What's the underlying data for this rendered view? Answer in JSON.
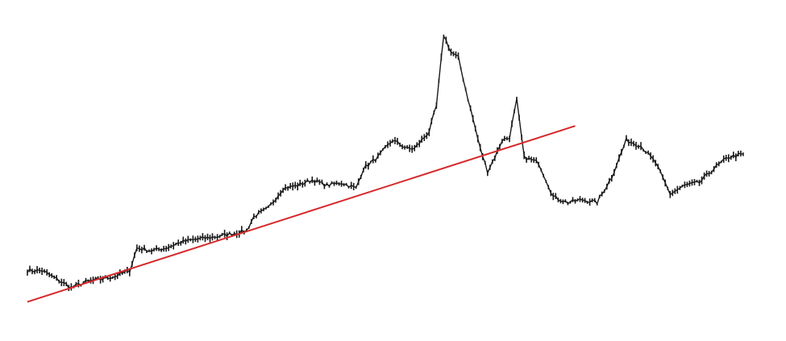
{
  "chart_data": {
    "type": "line",
    "title": "",
    "xlabel": "",
    "ylabel": "",
    "axes_visible": false,
    "grid": false,
    "legend": "none",
    "ylim": [
      0,
      100
    ],
    "xlim": [
      0,
      100
    ],
    "series": [
      {
        "points": [
          [
            0,
            16
          ],
          [
            2,
            16
          ],
          [
            4,
            13
          ],
          [
            6,
            10
          ],
          [
            8,
            12
          ],
          [
            10,
            13
          ],
          [
            12,
            14
          ],
          [
            14,
            16
          ],
          [
            15,
            24
          ],
          [
            17,
            23
          ],
          [
            19,
            24
          ],
          [
            21,
            26
          ],
          [
            23,
            27
          ],
          [
            26,
            28
          ],
          [
            28,
            29
          ],
          [
            30,
            30
          ],
          [
            31,
            35
          ],
          [
            33,
            38
          ],
          [
            35,
            45
          ],
          [
            37,
            46
          ],
          [
            39,
            48
          ],
          [
            41,
            46
          ],
          [
            43,
            47
          ],
          [
            45,
            45
          ],
          [
            46,
            52
          ],
          [
            48,
            56
          ],
          [
            50,
            62
          ],
          [
            52,
            59
          ],
          [
            53,
            59
          ],
          [
            55,
            65
          ],
          [
            56,
            74
          ],
          [
            57,
            99
          ],
          [
            58,
            93
          ],
          [
            59,
            91
          ],
          [
            60,
            80
          ],
          [
            62,
            59
          ],
          [
            63,
            51
          ],
          [
            64,
            56
          ],
          [
            65,
            62
          ],
          [
            66,
            63
          ],
          [
            67,
            76
          ],
          [
            68,
            56
          ],
          [
            70,
            54
          ],
          [
            72,
            42
          ],
          [
            74,
            40
          ],
          [
            76,
            41
          ],
          [
            78,
            40
          ],
          [
            80,
            49
          ],
          [
            82,
            62
          ],
          [
            84,
            60
          ],
          [
            86,
            54
          ],
          [
            88,
            43
          ],
          [
            90,
            46
          ],
          [
            92,
            47
          ],
          [
            94,
            52
          ],
          [
            96,
            56
          ],
          [
            98,
            57
          ]
        ]
      },
      {
        "points": [
          [
            0,
            5
          ],
          [
            75,
            67
          ]
        ]
      }
    ],
    "colors": {
      "price": "#1a1a1a",
      "trendline": "#d6292b",
      "background": "#ffffff"
    }
  }
}
